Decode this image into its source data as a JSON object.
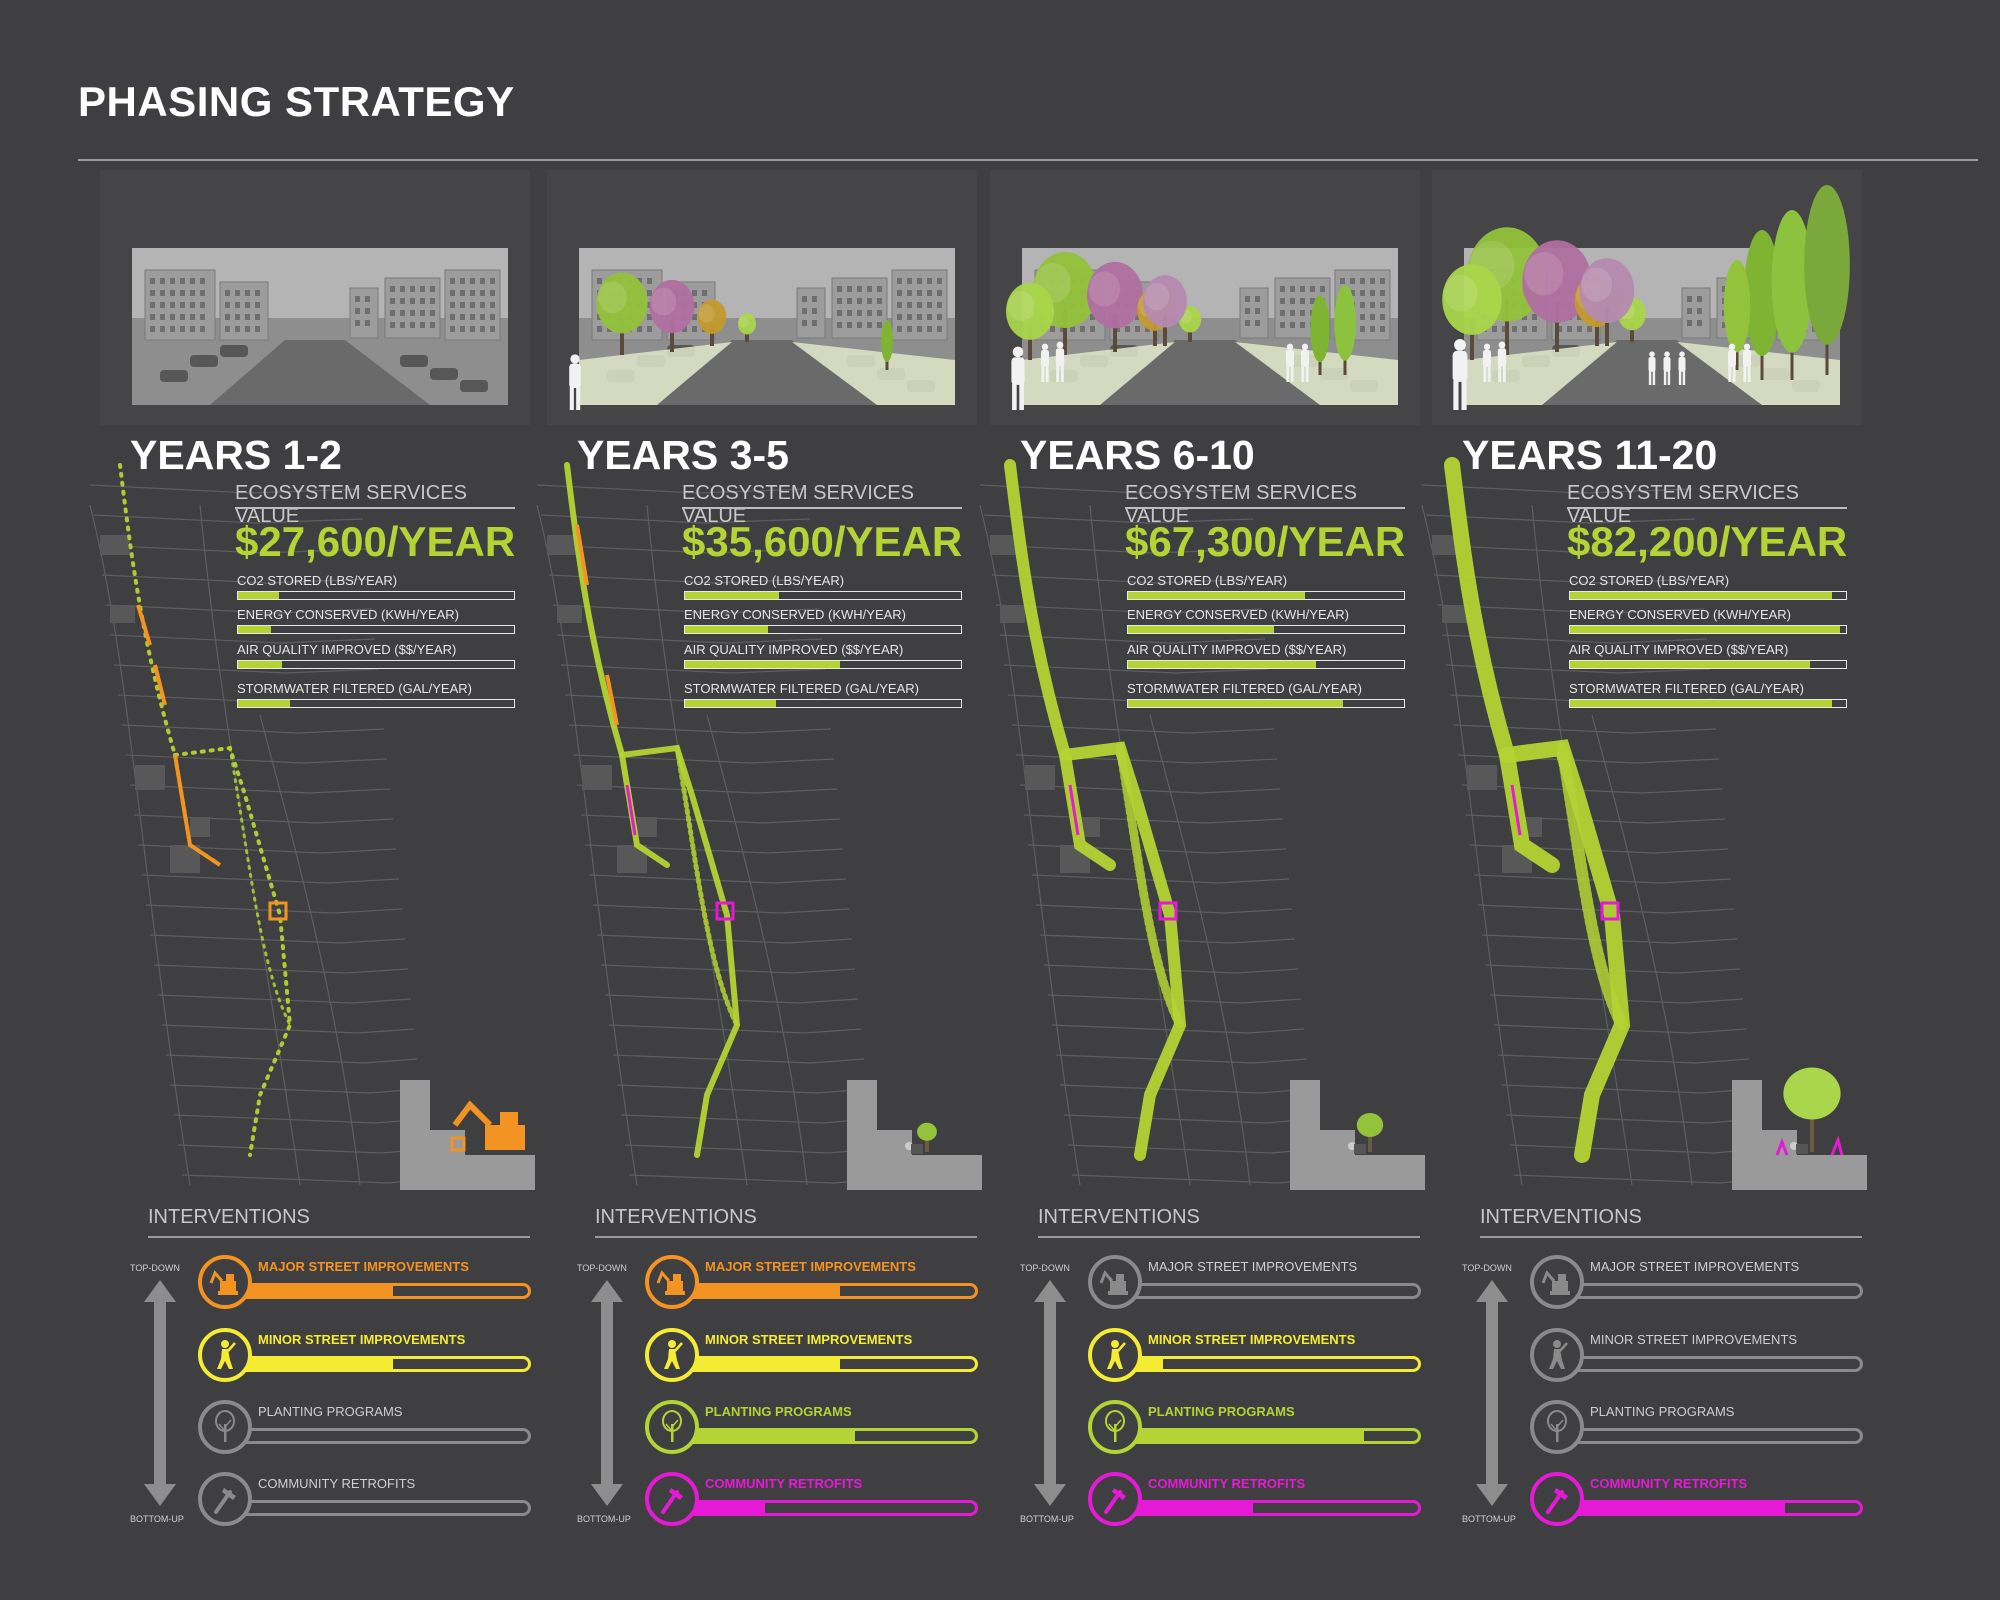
{
  "title": "PHASING STRATEGY",
  "colors": {
    "background": "#3f3f41",
    "lime": "#b5d334",
    "orange": "#f39322",
    "yellow": "#f4ec33",
    "magenta": "#e619d6",
    "inactive": "#8a8a8a"
  },
  "labels": {
    "ecosystem_services": "ECOSYSTEM SERVICES VALUE",
    "interventions": "INTERVENTIONS",
    "top_down": "TOP-DOWN",
    "bottom_up": "BOTTOM-UP",
    "metrics": [
      "CO2 STORED (LBS/YEAR)",
      "ENERGY CONSERVED (KWH/YEAR)",
      "AIR QUALITY IMPROVED ($$/YEAR)",
      "STORMWATER FILTERED (GAL/YEAR)"
    ],
    "interventions_list": [
      "MAJOR STREET IMPROVEMENTS",
      "MINOR STREET IMPROVEMENTS",
      "PLANTING PROGRAMS",
      "COMMUNITY RETROFITS"
    ]
  },
  "phases": [
    {
      "label": "YEARS 1-2",
      "value": "$27,600/YEAR",
      "metrics": [
        0.15,
        0.12,
        0.16,
        0.19
      ],
      "interventions": [
        {
          "active": true,
          "color": "#f39322",
          "level": 0.55
        },
        {
          "active": true,
          "color": "#f4ec33",
          "level": 0.55
        },
        {
          "active": false,
          "color": "#8a8a8a",
          "level": 0
        },
        {
          "active": false,
          "color": "#8a8a8a",
          "level": 0
        }
      ]
    },
    {
      "label": "YEARS 3-5",
      "value": "$35,600/YEAR",
      "metrics": [
        0.34,
        0.3,
        0.56,
        0.33
      ],
      "interventions": [
        {
          "active": true,
          "color": "#f39322",
          "level": 0.55
        },
        {
          "active": true,
          "color": "#f4ec33",
          "level": 0.55
        },
        {
          "active": true,
          "color": "#b5d334",
          "level": 0.6
        },
        {
          "active": true,
          "color": "#e619d6",
          "level": 0.3
        }
      ]
    },
    {
      "label": "YEARS 6-10",
      "value": "$67,300/YEAR",
      "metrics": [
        0.64,
        0.53,
        0.68,
        0.78
      ],
      "interventions": [
        {
          "active": false,
          "color": "#8a8a8a",
          "level": 0
        },
        {
          "active": true,
          "color": "#f4ec33",
          "level": 0.15
        },
        {
          "active": true,
          "color": "#b5d334",
          "level": 0.82
        },
        {
          "active": true,
          "color": "#e619d6",
          "level": 0.45
        }
      ]
    },
    {
      "label": "YEARS 11-20",
      "value": "$82,200/YEAR",
      "metrics": [
        0.95,
        0.98,
        0.87,
        0.95
      ],
      "interventions": [
        {
          "active": false,
          "color": "#8a8a8a",
          "level": 0
        },
        {
          "active": false,
          "color": "#8a8a8a",
          "level": 0
        },
        {
          "active": false,
          "color": "#8a8a8a",
          "level": 0
        },
        {
          "active": true,
          "color": "#e619d6",
          "level": 0.75
        }
      ]
    }
  ]
}
